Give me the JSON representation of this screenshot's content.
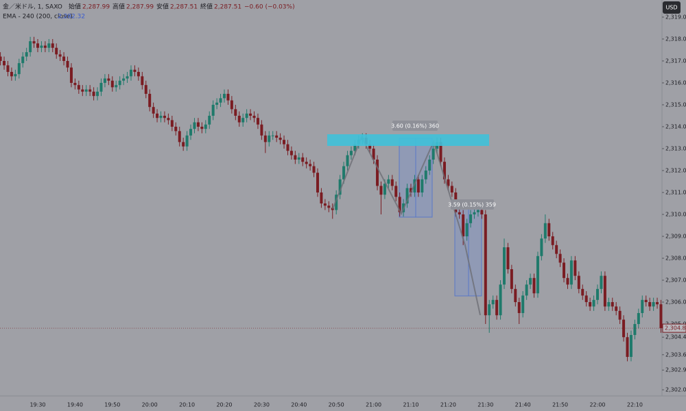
{
  "header": {
    "symbol": "金／米ドル, 1, SAXO",
    "ohlc": [
      {
        "label": "始値",
        "value": "2,287.99"
      },
      {
        "label": "高値",
        "value": "2,287.99"
      },
      {
        "label": "安値",
        "value": "2,287.51"
      },
      {
        "label": "終値",
        "value": "2,287.51"
      }
    ],
    "change": "−0.60 (−0.03%)"
  },
  "indicator": {
    "name": "EMA - 240 (200, close)",
    "value": "2,282.32"
  },
  "currency": "USD",
  "annotations": [
    {
      "text": "3.60 (0.16%) 360"
    },
    {
      "text": "3.59 (0.15%) 359"
    }
  ],
  "chart_data": {
    "type": "candlestick",
    "up_color": "#1f7a6b",
    "down_color": "#7a1c22",
    "grid": false,
    "ylim": [
      2301.72,
      2319.78
    ],
    "yticks": [
      {
        "value": 2319,
        "label": "2,319.00"
      },
      {
        "value": 2318,
        "label": "2,318.00"
      },
      {
        "value": 2317,
        "label": "2,317.00"
      },
      {
        "value": 2316,
        "label": "2,316.00"
      },
      {
        "value": 2315,
        "label": "2,315.00"
      },
      {
        "value": 2314,
        "label": "2,314.00"
      },
      {
        "value": 2313,
        "label": "2,313.00"
      },
      {
        "value": 2312,
        "label": "2,312.00"
      },
      {
        "value": 2311,
        "label": "2,311.00"
      },
      {
        "value": 2310,
        "label": "2,310.00"
      },
      {
        "value": 2309,
        "label": "2,309.00"
      },
      {
        "value": 2308,
        "label": "2,308.00"
      },
      {
        "value": 2307,
        "label": "2,307.00"
      },
      {
        "value": 2306,
        "label": "2,306.00"
      },
      {
        "value": 2305,
        "label": "2,305.00"
      },
      {
        "value": 2304.4,
        "label": "2,304.40"
      },
      {
        "value": 2303.6,
        "label": "2,303.60"
      },
      {
        "value": 2302.9,
        "label": "2,302.90"
      },
      {
        "value": 2302,
        "label": "2,302.00"
      }
    ],
    "last_price": {
      "value": 2304.81,
      "label": "2,304.81"
    },
    "x": [
      null,
      null,
      null,
      null,
      null,
      null,
      null,
      null,
      null,
      null,
      "19:30",
      null,
      null,
      null,
      null,
      null,
      null,
      null,
      null,
      null,
      "19:40",
      null,
      null,
      null,
      null,
      null,
      null,
      null,
      null,
      null,
      "19:50",
      null,
      null,
      null,
      null,
      null,
      null,
      null,
      null,
      null,
      "20:00",
      null,
      null,
      null,
      null,
      null,
      null,
      null,
      null,
      null,
      "20:10",
      null,
      null,
      null,
      null,
      null,
      null,
      null,
      null,
      null,
      "20:20",
      null,
      null,
      null,
      null,
      null,
      null,
      null,
      null,
      null,
      "20:30",
      null,
      null,
      null,
      null,
      null,
      null,
      null,
      null,
      null,
      "20:40",
      null,
      null,
      null,
      null,
      null,
      null,
      null,
      null,
      null,
      "20:50",
      null,
      null,
      null,
      null,
      null,
      null,
      null,
      null,
      null,
      "21:00",
      null,
      null,
      null,
      null,
      null,
      null,
      null,
      null,
      null,
      "21:10",
      null,
      null,
      null,
      null,
      null,
      null,
      null,
      null,
      null,
      "21:20",
      null,
      null,
      null,
      null,
      null,
      null,
      null,
      null,
      null,
      "21:30",
      null,
      null,
      null,
      null,
      null,
      null,
      null,
      null,
      null,
      "21:40",
      null,
      null,
      null,
      null,
      null,
      null,
      null,
      null,
      null,
      "21:50",
      null,
      null,
      null,
      null,
      null,
      null,
      null,
      null,
      null,
      "22:00",
      null,
      null,
      null,
      null,
      null,
      null,
      null,
      null,
      null,
      "22:10",
      null,
      null,
      null,
      null,
      null,
      null,
      null
    ],
    "open": [
      2317.2,
      2317.0,
      2316.8,
      2316.5,
      2316.3,
      2316.4,
      2316.9,
      2317.2,
      2317.4,
      2317.9,
      2317.8,
      2317.6,
      2317.7,
      2317.6,
      2317.8,
      2317.6,
      2317.3,
      2317.2,
      2317.0,
      2316.7,
      2316.0,
      2315.9,
      2315.7,
      2315.6,
      2315.7,
      2315.6,
      2315.4,
      2315.6,
      2316.0,
      2316.2,
      2316.1,
      2315.8,
      2315.9,
      2316.1,
      2316.2,
      2316.3,
      2316.6,
      2316.5,
      2316.3,
      2315.9,
      2315.5,
      2314.9,
      2314.6,
      2314.4,
      2314.5,
      2314.4,
      2314.3,
      2314.0,
      2313.8,
      2313.3,
      2313.1,
      2313.6,
      2313.9,
      2314.2,
      2314.0,
      2313.9,
      2314.1,
      2314.5,
      2315.0,
      2315.1,
      2315.3,
      2315.5,
      2315.2,
      2314.8,
      2314.5,
      2314.2,
      2314.4,
      2314.6,
      2314.5,
      2314.4,
      2314.1,
      2313.6,
      2313.3,
      2313.6,
      2313.6,
      2313.5,
      2313.4,
      2313.2,
      2312.9,
      2312.7,
      2312.5,
      2312.6,
      2312.4,
      2312.3,
      2312.2,
      2311.9,
      2311.0,
      2310.5,
      2310.4,
      2310.3,
      2310.2,
      2310.9,
      2311.6,
      2312.2,
      2312.7,
      2312.9,
      2313.2,
      2313.4,
      2313.5,
      2313.2,
      2313.0,
      2312.5,
      2311.3,
      2310.9,
      2311.4,
      2311.6,
      2311.3,
      2310.8,
      2310.1,
      2310.5,
      2311.2,
      2311.0,
      2311.6,
      2311.0,
      2311.6,
      2312.0,
      2312.5,
      2313.0,
      2313.3,
      2312.4,
      2311.6,
      2311.3,
      2311.0,
      2310.1,
      2310.0,
      2309.0,
      2309.6,
      2310.0,
      2310.1,
      2310.2,
      2310.0,
      2305.4,
      2305.9,
      2306.1,
      2305.4,
      2306.8,
      2308.5,
      2307.5,
      2306.6,
      2306.0,
      2305.5,
      2306.3,
      2306.8,
      2307.1,
      2306.4,
      2308.1,
      2308.9,
      2309.6,
      2309.0,
      2308.6,
      2308.2,
      2307.8,
      2307.1,
      2306.8,
      2307.9,
      2307.2,
      2306.6,
      2306.3,
      2306.0,
      2305.8,
      2306.1,
      2306.6,
      2307.2,
      2305.8,
      2306.0,
      2305.8,
      2305.6,
      2305.2,
      2304.4,
      2303.5,
      2304.5,
      2305.0,
      2305.5,
      2306.1,
      2306.0,
      2305.8,
      2306.0,
      2305.9
    ],
    "high": [
      2317.4,
      2317.2,
      2317.0,
      2316.7,
      2316.6,
      2317.1,
      2317.4,
      2317.6,
      2318.1,
      2318.1,
      2318.0,
      2317.9,
      2317.9,
      2318.0,
      2318.0,
      2317.8,
      2317.5,
      2317.4,
      2317.2,
      2316.9,
      2316.2,
      2316.1,
      2315.9,
      2315.9,
      2315.9,
      2315.8,
      2315.8,
      2316.2,
      2316.4,
      2316.4,
      2316.3,
      2316.1,
      2316.3,
      2316.4,
      2316.5,
      2316.8,
      2316.8,
      2316.7,
      2316.5,
      2316.1,
      2315.7,
      2315.1,
      2314.8,
      2314.7,
      2314.7,
      2314.6,
      2314.5,
      2314.2,
      2314.0,
      2313.5,
      2313.8,
      2314.1,
      2314.4,
      2314.4,
      2314.2,
      2314.3,
      2314.7,
      2315.2,
      2315.3,
      2315.5,
      2315.7,
      2315.7,
      2315.4,
      2315.0,
      2314.7,
      2314.6,
      2314.8,
      2314.8,
      2314.7,
      2314.6,
      2314.3,
      2313.8,
      2313.8,
      2313.8,
      2313.8,
      2313.7,
      2313.6,
      2313.4,
      2313.1,
      2312.9,
      2312.8,
      2312.8,
      2312.6,
      2312.5,
      2312.4,
      2312.1,
      2311.2,
      2310.7,
      2310.6,
      2310.5,
      2311.1,
      2311.8,
      2312.4,
      2312.9,
      2313.1,
      2313.4,
      2313.6,
      2313.7,
      2313.7,
      2313.4,
      2313.2,
      2312.7,
      2311.5,
      2311.6,
      2311.8,
      2311.8,
      2311.5,
      2311.0,
      2310.7,
      2311.4,
      2311.4,
      2311.8,
      2311.8,
      2311.8,
      2312.2,
      2312.7,
      2313.2,
      2313.5,
      2313.5,
      2312.6,
      2311.8,
      2311.5,
      2311.2,
      2310.3,
      2310.2,
      2309.8,
      2310.2,
      2310.3,
      2310.5,
      2310.4,
      2310.2,
      2306.1,
      2306.3,
      2306.3,
      2307.0,
      2308.9,
      2308.7,
      2307.7,
      2306.8,
      2306.2,
      2306.5,
      2307.0,
      2307.3,
      2307.3,
      2308.3,
      2309.1,
      2310.0,
      2309.8,
      2309.2,
      2308.8,
      2308.4,
      2308.0,
      2307.3,
      2308.1,
      2308.1,
      2307.4,
      2306.8,
      2306.5,
      2306.2,
      2306.3,
      2306.8,
      2307.4,
      2307.4,
      2306.2,
      2306.2,
      2306.0,
      2305.8,
      2305.4,
      2304.6,
      2304.7,
      2305.2,
      2305.7,
      2306.3,
      2306.3,
      2306.2,
      2306.2,
      2306.2,
      2306.1
    ],
    "low": [
      2316.8,
      2316.6,
      2316.3,
      2316.1,
      2316.1,
      2316.2,
      2316.7,
      2317.0,
      2317.2,
      2317.6,
      2317.4,
      2317.4,
      2317.4,
      2317.4,
      2317.4,
      2317.1,
      2317.0,
      2316.8,
      2316.5,
      2315.8,
      2315.7,
      2315.5,
      2315.4,
      2315.4,
      2315.4,
      2315.2,
      2315.2,
      2315.4,
      2315.8,
      2315.9,
      2315.6,
      2315.6,
      2315.7,
      2315.9,
      2316.0,
      2316.1,
      2316.3,
      2316.1,
      2315.7,
      2315.3,
      2314.7,
      2314.4,
      2314.2,
      2314.2,
      2314.2,
      2314.1,
      2313.8,
      2313.6,
      2313.1,
      2312.9,
      2312.9,
      2313.4,
      2313.7,
      2313.8,
      2313.7,
      2313.7,
      2313.9,
      2314.3,
      2314.8,
      2314.9,
      2315.1,
      2315.0,
      2314.6,
      2314.3,
      2314.0,
      2314.0,
      2314.2,
      2314.3,
      2314.2,
      2313.9,
      2313.4,
      2312.8,
      2313.1,
      2313.4,
      2313.3,
      2313.2,
      2313.0,
      2312.7,
      2312.5,
      2312.3,
      2312.3,
      2312.2,
      2312.1,
      2312.0,
      2311.7,
      2310.8,
      2310.3,
      2310.2,
      2310.1,
      2309.8,
      2310.0,
      2310.7,
      2311.4,
      2312.0,
      2312.5,
      2312.7,
      2313.0,
      2313.2,
      2313.0,
      2312.8,
      2312.3,
      2311.1,
      2310.0,
      2310.7,
      2311.2,
      2311.1,
      2310.6,
      2309.9,
      2309.9,
      2310.3,
      2310.8,
      2310.8,
      2310.8,
      2310.8,
      2311.4,
      2311.8,
      2312.3,
      2312.8,
      2312.2,
      2311.4,
      2311.1,
      2310.8,
      2309.9,
      2309.8,
      2308.6,
      2308.8,
      2309.4,
      2309.8,
      2309.9,
      2309.8,
      2305.0,
      2304.6,
      2305.7,
      2305.2,
      2305.2,
      2306.6,
      2307.3,
      2306.4,
      2305.8,
      2305.0,
      2305.3,
      2306.1,
      2306.6,
      2306.2,
      2306.2,
      2307.9,
      2308.7,
      2308.8,
      2308.4,
      2308.0,
      2307.6,
      2306.9,
      2306.6,
      2306.6,
      2307.0,
      2306.4,
      2306.1,
      2305.8,
      2305.6,
      2305.6,
      2305.9,
      2306.4,
      2305.6,
      2305.6,
      2305.6,
      2305.4,
      2305.0,
      2304.2,
      2303.3,
      2303.3,
      2304.3,
      2304.8,
      2305.3,
      2305.8,
      2305.6,
      2305.6,
      2305.7,
      2304.6
    ],
    "close": [
      2317.0,
      2316.8,
      2316.5,
      2316.3,
      2316.4,
      2316.9,
      2317.2,
      2317.4,
      2317.9,
      2317.8,
      2317.6,
      2317.7,
      2317.6,
      2317.8,
      2317.6,
      2317.3,
      2317.2,
      2317.0,
      2316.7,
      2316.0,
      2315.9,
      2315.7,
      2315.6,
      2315.7,
      2315.6,
      2315.4,
      2315.6,
      2316.0,
      2316.2,
      2316.1,
      2315.8,
      2315.9,
      2316.1,
      2316.2,
      2316.3,
      2316.6,
      2316.5,
      2316.3,
      2315.9,
      2315.5,
      2314.9,
      2314.6,
      2314.4,
      2314.5,
      2314.4,
      2314.3,
      2314.0,
      2313.8,
      2313.3,
      2313.1,
      2313.6,
      2313.9,
      2314.2,
      2314.0,
      2313.9,
      2314.1,
      2314.5,
      2315.0,
      2315.1,
      2315.3,
      2315.5,
      2315.2,
      2314.8,
      2314.5,
      2314.2,
      2314.4,
      2314.6,
      2314.5,
      2314.4,
      2314.1,
      2313.6,
      2313.3,
      2313.6,
      2313.6,
      2313.5,
      2313.4,
      2313.2,
      2312.9,
      2312.7,
      2312.5,
      2312.6,
      2312.4,
      2312.3,
      2312.2,
      2311.9,
      2311.0,
      2310.5,
      2310.4,
      2310.3,
      2310.2,
      2310.9,
      2311.6,
      2312.2,
      2312.7,
      2312.9,
      2313.2,
      2313.4,
      2313.5,
      2313.2,
      2313.0,
      2312.5,
      2311.3,
      2310.9,
      2311.4,
      2311.6,
      2311.3,
      2310.8,
      2310.1,
      2310.5,
      2311.2,
      2311.0,
      2311.6,
      2311.0,
      2311.6,
      2312.0,
      2312.5,
      2313.0,
      2313.3,
      2312.4,
      2311.6,
      2311.3,
      2311.0,
      2310.1,
      2310.0,
      2309.0,
      2309.6,
      2310.0,
      2310.1,
      2310.2,
      2310.0,
      2305.4,
      2305.9,
      2306.1,
      2305.4,
      2306.8,
      2308.5,
      2307.5,
      2306.6,
      2306.0,
      2305.5,
      2306.3,
      2306.8,
      2307.1,
      2306.4,
      2308.1,
      2308.9,
      2309.6,
      2309.0,
      2308.6,
      2308.2,
      2307.8,
      2307.1,
      2306.8,
      2307.9,
      2307.2,
      2306.6,
      2306.3,
      2306.0,
      2305.8,
      2306.1,
      2306.6,
      2307.2,
      2305.8,
      2306.0,
      2305.8,
      2305.6,
      2305.2,
      2304.4,
      2303.5,
      2304.5,
      2305.0,
      2305.5,
      2306.1,
      2306.0,
      2305.8,
      2306.0,
      2305.9,
      2304.81
    ]
  }
}
